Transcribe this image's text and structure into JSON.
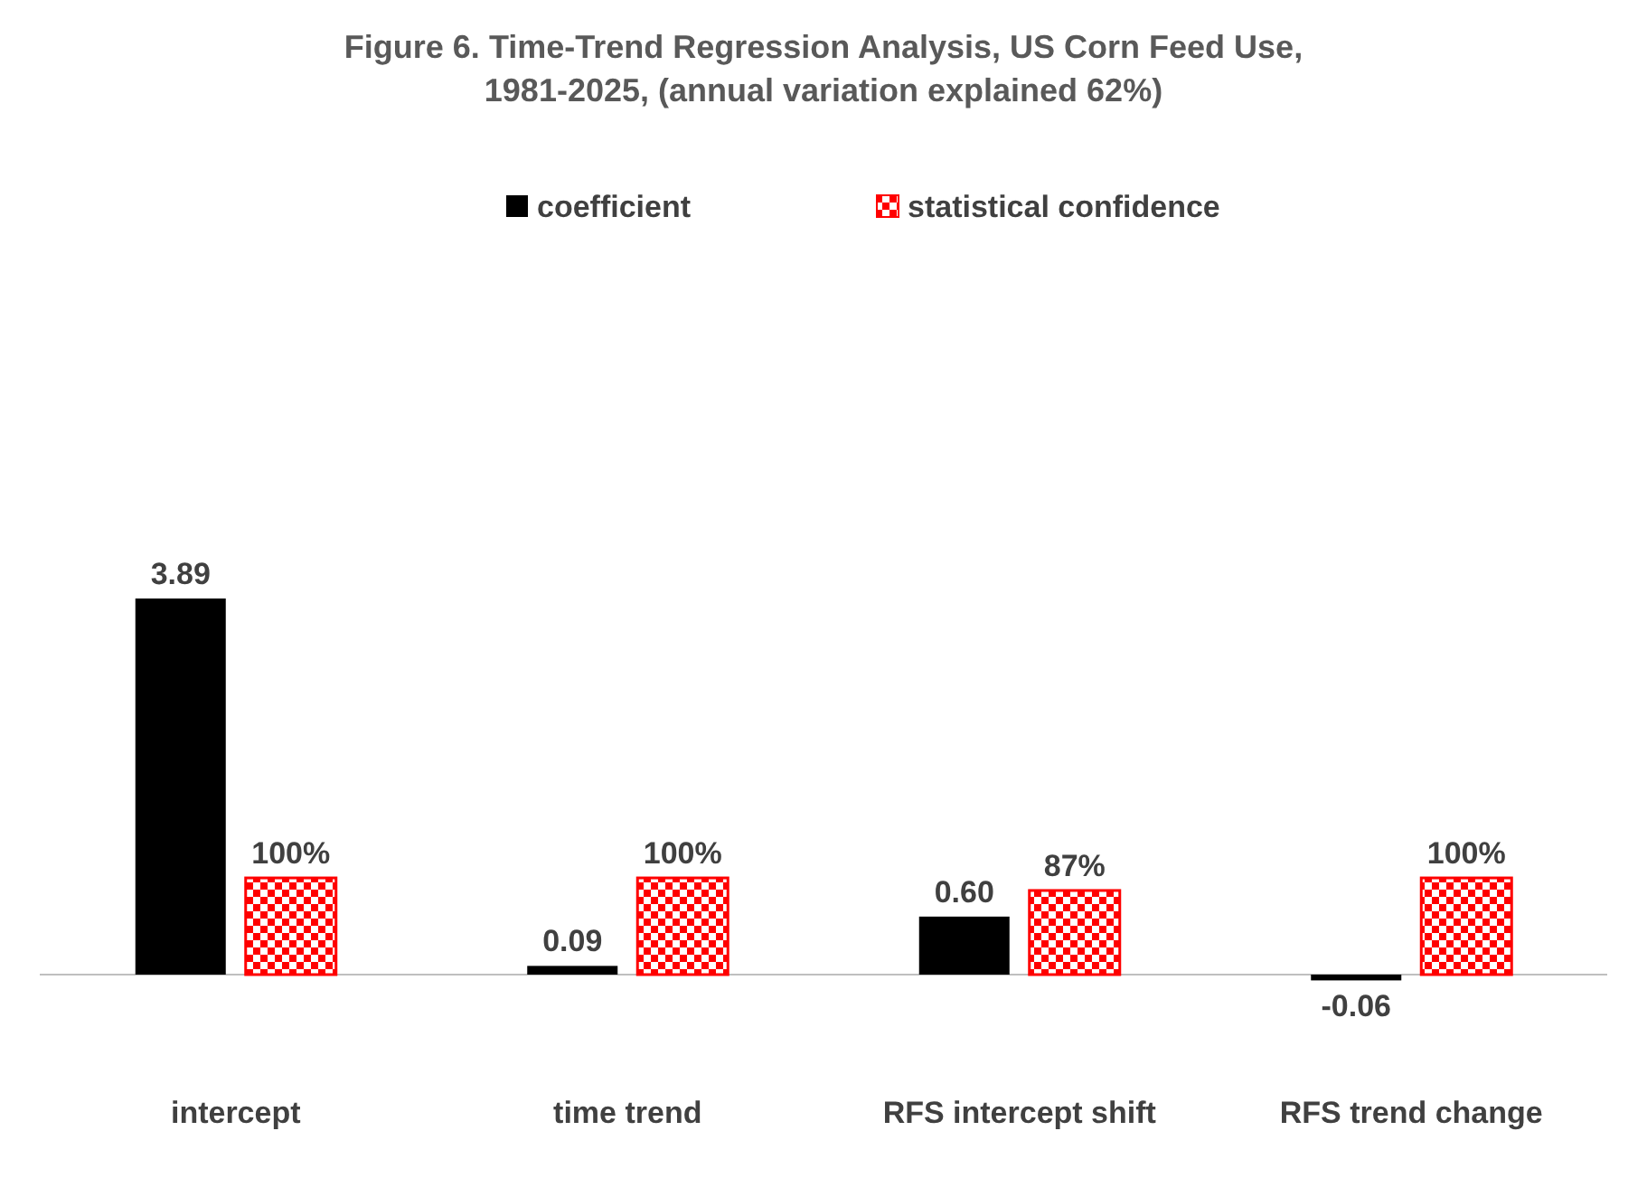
{
  "chart_data": {
    "type": "bar",
    "title": "Figure 6.  Time-Trend Regression Analysis, US Corn Feed Use, 1981-2025, (annual variation explained  62%)",
    "categories": [
      "intercept",
      "time trend",
      "RFS intercept shift",
      "RFS trend change"
    ],
    "series": [
      {
        "name": "coefficient",
        "color": "#000000",
        "values": [
          3.89,
          0.09,
          0.6,
          -0.06
        ],
        "value_labels": [
          "3.89",
          "0.09",
          "0.60",
          "-0.06"
        ]
      },
      {
        "name": "statistical confidence",
        "color": "#ff0000",
        "values": [
          1.0,
          1.0,
          0.87,
          1.0
        ],
        "value_labels": [
          "100%",
          "100%",
          "87%",
          "100%"
        ]
      }
    ],
    "legend": "top"
  }
}
